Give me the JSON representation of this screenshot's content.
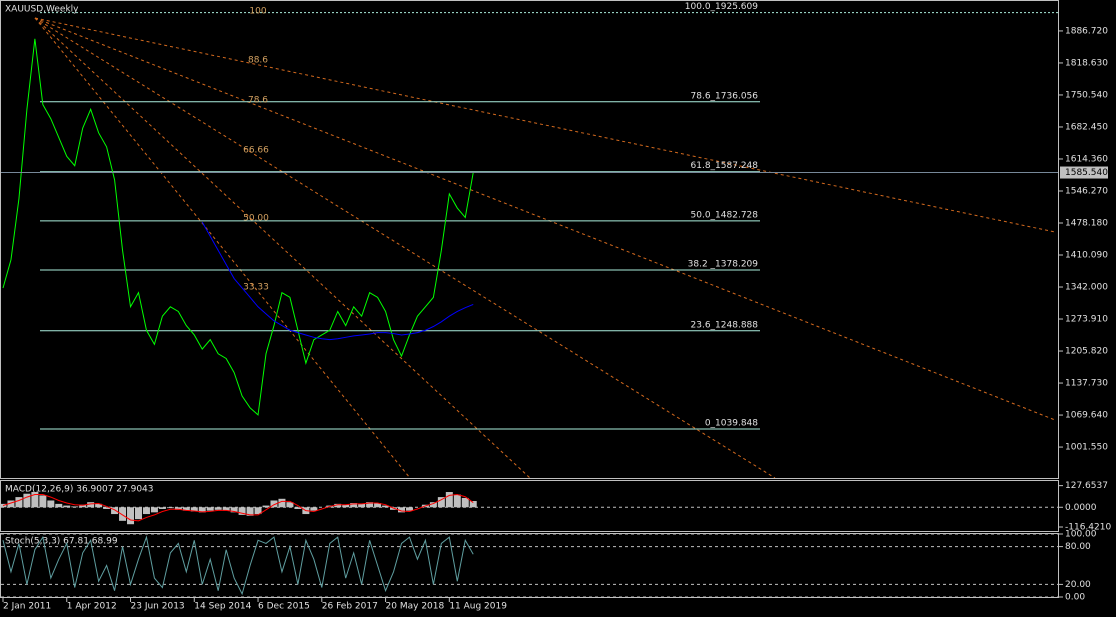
{
  "chart_data": [
    {
      "type": "line",
      "title": "XAUUSD,Weekly",
      "categories": [
        "2 Jan 2011",
        null,
        null,
        null,
        null,
        null,
        null,
        null,
        "1 Apr 2012",
        null,
        null,
        null,
        null,
        null,
        null,
        null,
        "23 Jun 2013",
        null,
        null,
        null,
        null,
        null,
        null,
        null,
        "14 Sep 2014",
        null,
        null,
        null,
        null,
        null,
        null,
        null,
        "6 Dec 2015",
        null,
        null,
        null,
        null,
        null,
        null,
        null,
        "26 Feb 2017",
        null,
        null,
        null,
        null,
        null,
        null,
        null,
        "20 May 2018",
        null,
        null,
        null,
        null,
        null,
        null,
        null,
        "11 Aug 2019",
        null,
        null,
        null
      ],
      "series": [
        {
          "color": "#00ff00",
          "values": [
            1340,
            1400,
            1530,
            1720,
            1870,
            1730,
            1700,
            1660,
            1620,
            1600,
            1680,
            1720,
            1670,
            1640,
            1570,
            1420,
            1300,
            1330,
            1250,
            1220,
            1280,
            1300,
            1290,
            1260,
            1240,
            1210,
            1230,
            1200,
            1190,
            1160,
            1110,
            1085,
            1070,
            1200,
            1260,
            1330,
            1320,
            1250,
            1180,
            1230,
            1240,
            1250,
            1290,
            1260,
            1300,
            1280,
            1330,
            1320,
            1290,
            1230,
            1195,
            1240,
            1280,
            1300,
            1320,
            1420,
            1540,
            1510,
            1490,
            1585.54
          ]
        },
        {
          "color": "#0000ff",
          "values": [
            null,
            null,
            null,
            null,
            null,
            null,
            null,
            null,
            null,
            null,
            null,
            null,
            null,
            null,
            null,
            null,
            null,
            null,
            null,
            null,
            null,
            null,
            null,
            null,
            null,
            1480,
            1450,
            1420,
            1390,
            1360,
            1340,
            1320,
            1300,
            1285,
            1270,
            1260,
            1250,
            1245,
            1240,
            1235,
            1232,
            1230,
            1232,
            1235,
            1238,
            1240,
            1242,
            1245,
            1245,
            1243,
            1240,
            1242,
            1245,
            1250,
            1258,
            1268,
            1280,
            1290,
            1298,
            1305
          ]
        }
      ],
      "ylim": [
        935.75,
        1950.4
      ],
      "yticks": [
        {
          "value": 1886.72,
          "label": "1886.720"
        },
        {
          "value": 1818.63,
          "label": "1818.630"
        },
        {
          "value": 1750.54,
          "label": "1750.540"
        },
        {
          "value": 1682.45,
          "label": "1682.450"
        },
        {
          "value": 1614.36,
          "label": "1614.360"
        },
        {
          "value": 1546.27,
          "label": "1546.270"
        },
        {
          "value": 1478.18,
          "label": "1478.180"
        },
        {
          "value": 1410.09,
          "label": "1410.090"
        },
        {
          "value": 1342,
          "label": "1342.000"
        },
        {
          "value": 1273.91,
          "label": "1273.910"
        },
        {
          "value": 1205.82,
          "label": "1205.820"
        },
        {
          "value": 1137.73,
          "label": "1137.730"
        },
        {
          "value": 1069.64,
          "label": "1069.640"
        },
        {
          "value": 1001.55,
          "label": "1001.550"
        }
      ],
      "current_price": {
        "value": 1585.54,
        "label": "1585.540"
      },
      "fib_levels": [
        {
          "value": 1925.609,
          "label": "100.0_1925.609"
        },
        {
          "value": 1736.056,
          "label": "78.6_1736.056"
        },
        {
          "value": 1587.248,
          "label": "61.8_1587.248"
        },
        {
          "value": 1482.728,
          "label": "50.0_1482.728"
        },
        {
          "value": 1378.209,
          "label": "38.2 _1378.209"
        },
        {
          "value": 1248.888,
          "label": "23.6_1248.888"
        },
        {
          "value": 1039.848,
          "label": "0_1039.848"
        }
      ],
      "fan_labels": [
        "100",
        "88.6",
        "78.6",
        "66.66",
        "50.00",
        "33.33"
      ]
    },
    {
      "type": "macd",
      "title": "MACD(12,26,9) 36.9007 27.9043",
      "series": [
        {
          "type": "bar",
          "color": "#c0c0c0",
          "values": [
            20,
            40,
            60,
            80,
            90,
            70,
            40,
            20,
            10,
            5,
            15,
            30,
            20,
            -10,
            -40,
            -80,
            -100,
            -70,
            -40,
            -30,
            -10,
            -5,
            -15,
            -20,
            -25,
            -30,
            -20,
            -15,
            -20,
            -30,
            -45,
            -50,
            -40,
            10,
            40,
            50,
            30,
            -10,
            -40,
            -20,
            0,
            10,
            20,
            15,
            25,
            20,
            30,
            25,
            10,
            -15,
            -30,
            -20,
            0,
            15,
            30,
            60,
            90,
            75,
            55,
            36.9007
          ]
        },
        {
          "type": "line",
          "color": "#ff0000",
          "values": [
            10,
            25,
            40,
            60,
            75,
            75,
            60,
            40,
            25,
            15,
            12,
            20,
            22,
            5,
            -15,
            -45,
            -75,
            -80,
            -60,
            -45,
            -25,
            -12,
            -12,
            -18,
            -22,
            -27,
            -24,
            -18,
            -18,
            -25,
            -35,
            -45,
            -45,
            -15,
            15,
            35,
            35,
            10,
            -20,
            -25,
            -10,
            5,
            15,
            15,
            20,
            20,
            25,
            25,
            15,
            -5,
            -22,
            -25,
            -10,
            8,
            22,
            45,
            70,
            75,
            62,
            27.9043
          ]
        }
      ],
      "ylim": [
        -140,
        155
      ],
      "yticks": [
        127.6537,
        {
          "value": 0,
          "label": "0.0000"
        },
        {
          "value": -116.421,
          "label": "-116.4210"
        }
      ]
    },
    {
      "type": "stoch",
      "title": "Stoch(5,3,3) 67.81 68.99",
      "series": [
        {
          "type": "line",
          "color": "#5f9ea0",
          "values": [
            90,
            40,
            85,
            20,
            75,
            95,
            30,
            60,
            85,
            15,
            70,
            90,
            25,
            50,
            10,
            80,
            20,
            60,
            95,
            30,
            15,
            70,
            85,
            40,
            90,
            20,
            60,
            10,
            75,
            30,
            5,
            50,
            90,
            85,
            95,
            40,
            80,
            20,
            90,
            60,
            15,
            85,
            95,
            30,
            70,
            20,
            90,
            50,
            10,
            40,
            85,
            95,
            60,
            90,
            20,
            85,
            95,
            25,
            90,
            67.81
          ]
        }
      ],
      "ylim": [
        0,
        100
      ],
      "yticks": [
        {
          "value": 100,
          "label": "100.00"
        },
        {
          "value": 80,
          "label": "80.00"
        },
        {
          "value": 20,
          "label": "20.00"
        },
        {
          "value": 0,
          "label": "0.00"
        }
      ]
    }
  ]
}
